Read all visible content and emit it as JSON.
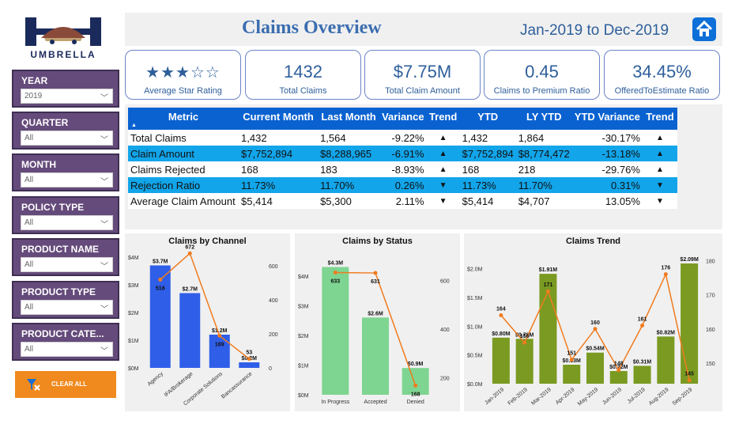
{
  "logo": {
    "text": "UMBRELLA"
  },
  "header": {
    "title": "Claims Overview",
    "date_range": "Jan-2019 to Dec-2019"
  },
  "filters": [
    {
      "label": "YEAR",
      "value": "2019"
    },
    {
      "label": "QUARTER",
      "value": "All"
    },
    {
      "label": "MONTH",
      "value": "All"
    },
    {
      "label": "POLICY TYPE",
      "value": "All"
    },
    {
      "label": "PRODUCT NAME",
      "value": "All"
    },
    {
      "label": "PRODUCT TYPE",
      "value": "All"
    },
    {
      "label": "PRODUCT CATE...",
      "value": "All"
    }
  ],
  "clear_all": {
    "label": "CLEAR ALL"
  },
  "kpis": {
    "rating": {
      "stars": "★★★☆☆",
      "value": 3,
      "max": 5,
      "label": "Average Star Rating"
    },
    "total_claims": {
      "value": "1432",
      "label": "Total Claims"
    },
    "total_amount": {
      "value": "$7.75M",
      "label": "Total Claim Amount"
    },
    "ratio": {
      "value": "0.45",
      "label": "Claims to Premium Ratio"
    },
    "offered": {
      "value": "34.45%",
      "label": "OfferedToEstimate Ratio"
    }
  },
  "table": {
    "headers": [
      "Metric",
      "Current Month",
      "Last Month",
      "Variance",
      "Trend",
      "YTD",
      "LY YTD",
      "YTD Variance",
      "Trend"
    ],
    "sort_indicator": "▲",
    "rows": [
      {
        "metric": "Total Claims",
        "current": "1,432",
        "last": "1,564",
        "variance": "-9.22%",
        "trend": "▲",
        "ytd": "1,432",
        "ly_ytd": "1,864",
        "ytd_variance": "-30.17%",
        "ytd_trend": "▲"
      },
      {
        "metric": "Claim Amount",
        "current": "$7,752,894",
        "last": "$8,288,965",
        "variance": "-6.91%",
        "trend": "▲",
        "ytd": "$7,752,894",
        "ly_ytd": "$8,774,472",
        "ytd_variance": "-13.18%",
        "ytd_trend": "▲"
      },
      {
        "metric": "Claims Rejected",
        "current": "168",
        "last": "183",
        "variance": "-8.93%",
        "trend": "▲",
        "ytd": "168",
        "ly_ytd": "218",
        "ytd_variance": "-29.76%",
        "ytd_trend": "▲"
      },
      {
        "metric": "Rejection Ratio",
        "current": "11.73%",
        "last": "11.70%",
        "variance": "0.26%",
        "trend": "▼",
        "ytd": "11.73%",
        "ly_ytd": "11.70%",
        "ytd_variance": "0.31%",
        "ytd_trend": "▼"
      },
      {
        "metric": "Average Claim Amount",
        "current": "$5,414",
        "last": "$5,300",
        "variance": "2.11%",
        "trend": "▼",
        "ytd": "$5,414",
        "ly_ytd": "$4,707",
        "ytd_variance": "13.05%",
        "ytd_trend": "▼"
      }
    ]
  },
  "colors": {
    "filter_bg": "#654b7b",
    "table_header": "#0a62d1",
    "highlight_row": "#12a5ea",
    "accent_text": "#2e5f9b",
    "line": "#f07b1e"
  },
  "chart_data": [
    {
      "type": "bar",
      "title": "Claims by Channel",
      "categories": [
        "Agency",
        "IFA/Brokerage",
        "Corporate Solutions",
        "Bancassurance"
      ],
      "series": [
        {
          "name": "Claim Amount",
          "values": [
            3.7,
            2.7,
            1.2,
            0.2
          ],
          "labels": [
            "$3.7M",
            "$2.7M",
            "$1.2M",
            "$0.2M"
          ],
          "color": "#2f5ee8"
        },
        {
          "name": "Claims",
          "axis": "right",
          "values": [
            518,
            672,
            189,
            53
          ],
          "color": "#f07b1e"
        }
      ],
      "y_ticks": [
        "$0M",
        "$1M",
        "$2M",
        "$3M",
        "$4M"
      ],
      "y2_ticks": [
        "0",
        "200",
        "400",
        "600"
      ],
      "ylim": [
        0,
        4
      ],
      "y2lim": [
        0,
        650
      ]
    },
    {
      "type": "bar",
      "title": "Claims by Status",
      "categories": [
        "In Progress",
        "Accepted",
        "Denied"
      ],
      "series": [
        {
          "name": "Claim Amount",
          "values": [
            4.3,
            2.6,
            0.9
          ],
          "labels": [
            "$4.3M",
            "$2.6M",
            "$0.9M"
          ],
          "color": "#7ed591"
        },
        {
          "name": "Claims",
          "axis": "right",
          "values": [
            633,
            631,
            168
          ],
          "color": "#f07b1e"
        }
      ],
      "y_ticks": [
        "$0M",
        "$1M",
        "$2M",
        "$3M",
        "$4M"
      ],
      "y2_ticks": [
        "200",
        "400",
        "600"
      ],
      "ylim": [
        0,
        4.5
      ],
      "y2lim": [
        130,
        680
      ]
    },
    {
      "type": "bar",
      "title": "Claims Trend",
      "categories": [
        "Jan-2019",
        "Feb-2019",
        "Mar-2019",
        "Apr-2019",
        "May-2019",
        "Jun-2019",
        "Jul-2019",
        "Aug-2019",
        "Sep-2019"
      ],
      "series": [
        {
          "name": "Claim Amount",
          "values": [
            0.8,
            0.78,
            1.91,
            0.33,
            0.54,
            0.22,
            0.31,
            0.82,
            2.09
          ],
          "labels": [
            "$0.80M",
            "$0.78M",
            "$1.91M",
            "$0.33M",
            "$0.54M",
            "$0.22M",
            "$0.31M",
            "$0.82M",
            "$2.09M"
          ],
          "color": "#7a9a22"
        },
        {
          "name": "Claims",
          "axis": "right",
          "values": [
            164,
            156,
            171,
            151,
            160,
            148,
            161,
            176,
            145
          ],
          "color": "#f07b1e"
        }
      ],
      "y_ticks": [
        "$0.0M",
        "$0.5M",
        "$1.0M",
        "$1.5M",
        "$2.0M"
      ],
      "y2_ticks": [
        "150",
        "160",
        "170",
        "180"
      ],
      "ylim": [
        0,
        2.2
      ],
      "y2lim": [
        144,
        181
      ]
    }
  ]
}
